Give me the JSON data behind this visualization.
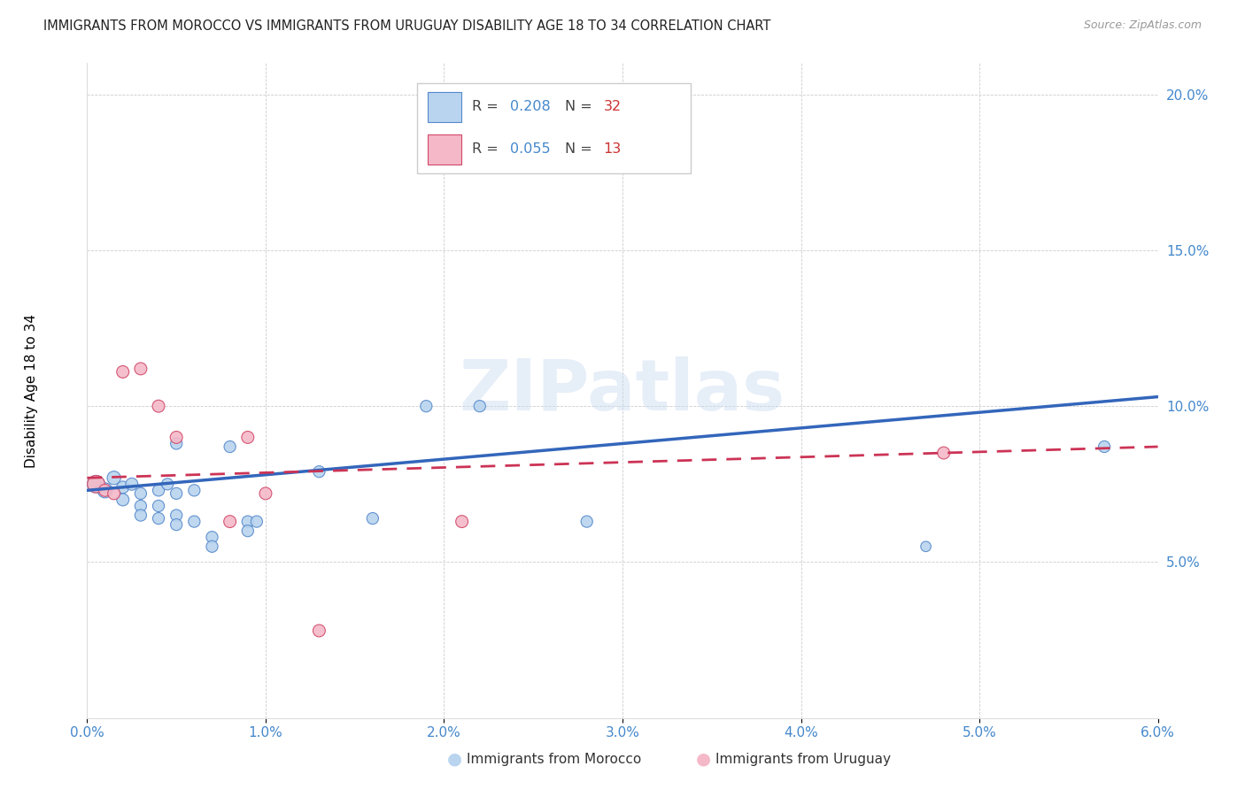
{
  "title": "IMMIGRANTS FROM MOROCCO VS IMMIGRANTS FROM URUGUAY DISABILITY AGE 18 TO 34 CORRELATION CHART",
  "source": "Source: ZipAtlas.com",
  "ylabel": "Disability Age 18 to 34",
  "xlim": [
    0.0,
    0.06
  ],
  "ylim": [
    0.0,
    0.21
  ],
  "xticks": [
    0.0,
    0.01,
    0.02,
    0.03,
    0.04,
    0.05,
    0.06
  ],
  "xtick_labels": [
    "0.0%",
    "1.0%",
    "2.0%",
    "3.0%",
    "4.0%",
    "5.0%",
    "6.0%"
  ],
  "yticks": [
    0.0,
    0.05,
    0.1,
    0.15,
    0.2
  ],
  "ytick_labels": [
    "",
    "5.0%",
    "10.0%",
    "15.0%",
    "20.0%"
  ],
  "legend_label1": "Immigrants from Morocco",
  "legend_label2": "Immigrants from Uruguay",
  "R1": "0.208",
  "N1": "32",
  "R2": "0.055",
  "N2": "13",
  "color1_fill": "#b8d4ee",
  "color1_edge": "#5588cc",
  "color2_fill": "#f4b8c8",
  "color2_edge": "#d04868",
  "color1_line": "#3366bb",
  "color2_line": "#cc3355",
  "watermark": "ZIPatlas",
  "morocco_x": [
    0.0005,
    0.001,
    0.0015,
    0.002,
    0.002,
    0.0025,
    0.003,
    0.003,
    0.003,
    0.004,
    0.004,
    0.004,
    0.0045,
    0.005,
    0.005,
    0.005,
    0.005,
    0.006,
    0.006,
    0.007,
    0.007,
    0.008,
    0.009,
    0.009,
    0.0095,
    0.013,
    0.016,
    0.019,
    0.022,
    0.028,
    0.047,
    0.057
  ],
  "morocco_y": [
    0.075,
    0.073,
    0.077,
    0.074,
    0.07,
    0.075,
    0.072,
    0.068,
    0.065,
    0.073,
    0.068,
    0.064,
    0.075,
    0.088,
    0.072,
    0.065,
    0.062,
    0.073,
    0.063,
    0.058,
    0.055,
    0.087,
    0.063,
    0.06,
    0.063,
    0.079,
    0.064,
    0.1,
    0.1,
    0.063,
    0.055,
    0.087
  ],
  "morocco_sizes": [
    200,
    150,
    120,
    100,
    100,
    100,
    90,
    90,
    90,
    90,
    90,
    90,
    90,
    90,
    90,
    90,
    90,
    90,
    90,
    90,
    90,
    90,
    90,
    90,
    90,
    90,
    90,
    90,
    90,
    90,
    70,
    90
  ],
  "uruguay_x": [
    0.0005,
    0.001,
    0.0015,
    0.002,
    0.003,
    0.004,
    0.005,
    0.008,
    0.009,
    0.01,
    0.013,
    0.021,
    0.048
  ],
  "uruguay_y": [
    0.075,
    0.073,
    0.072,
    0.111,
    0.112,
    0.1,
    0.09,
    0.063,
    0.09,
    0.072,
    0.028,
    0.063,
    0.085
  ],
  "uruguay_sizes": [
    200,
    100,
    100,
    100,
    100,
    100,
    100,
    100,
    100,
    100,
    100,
    100,
    100
  ],
  "morocco_trend_x": [
    0.0,
    0.06
  ],
  "morocco_trend_y": [
    0.073,
    0.103
  ],
  "uruguay_trend_x": [
    0.0,
    0.06
  ],
  "uruguay_trend_y": [
    0.077,
    0.087
  ]
}
